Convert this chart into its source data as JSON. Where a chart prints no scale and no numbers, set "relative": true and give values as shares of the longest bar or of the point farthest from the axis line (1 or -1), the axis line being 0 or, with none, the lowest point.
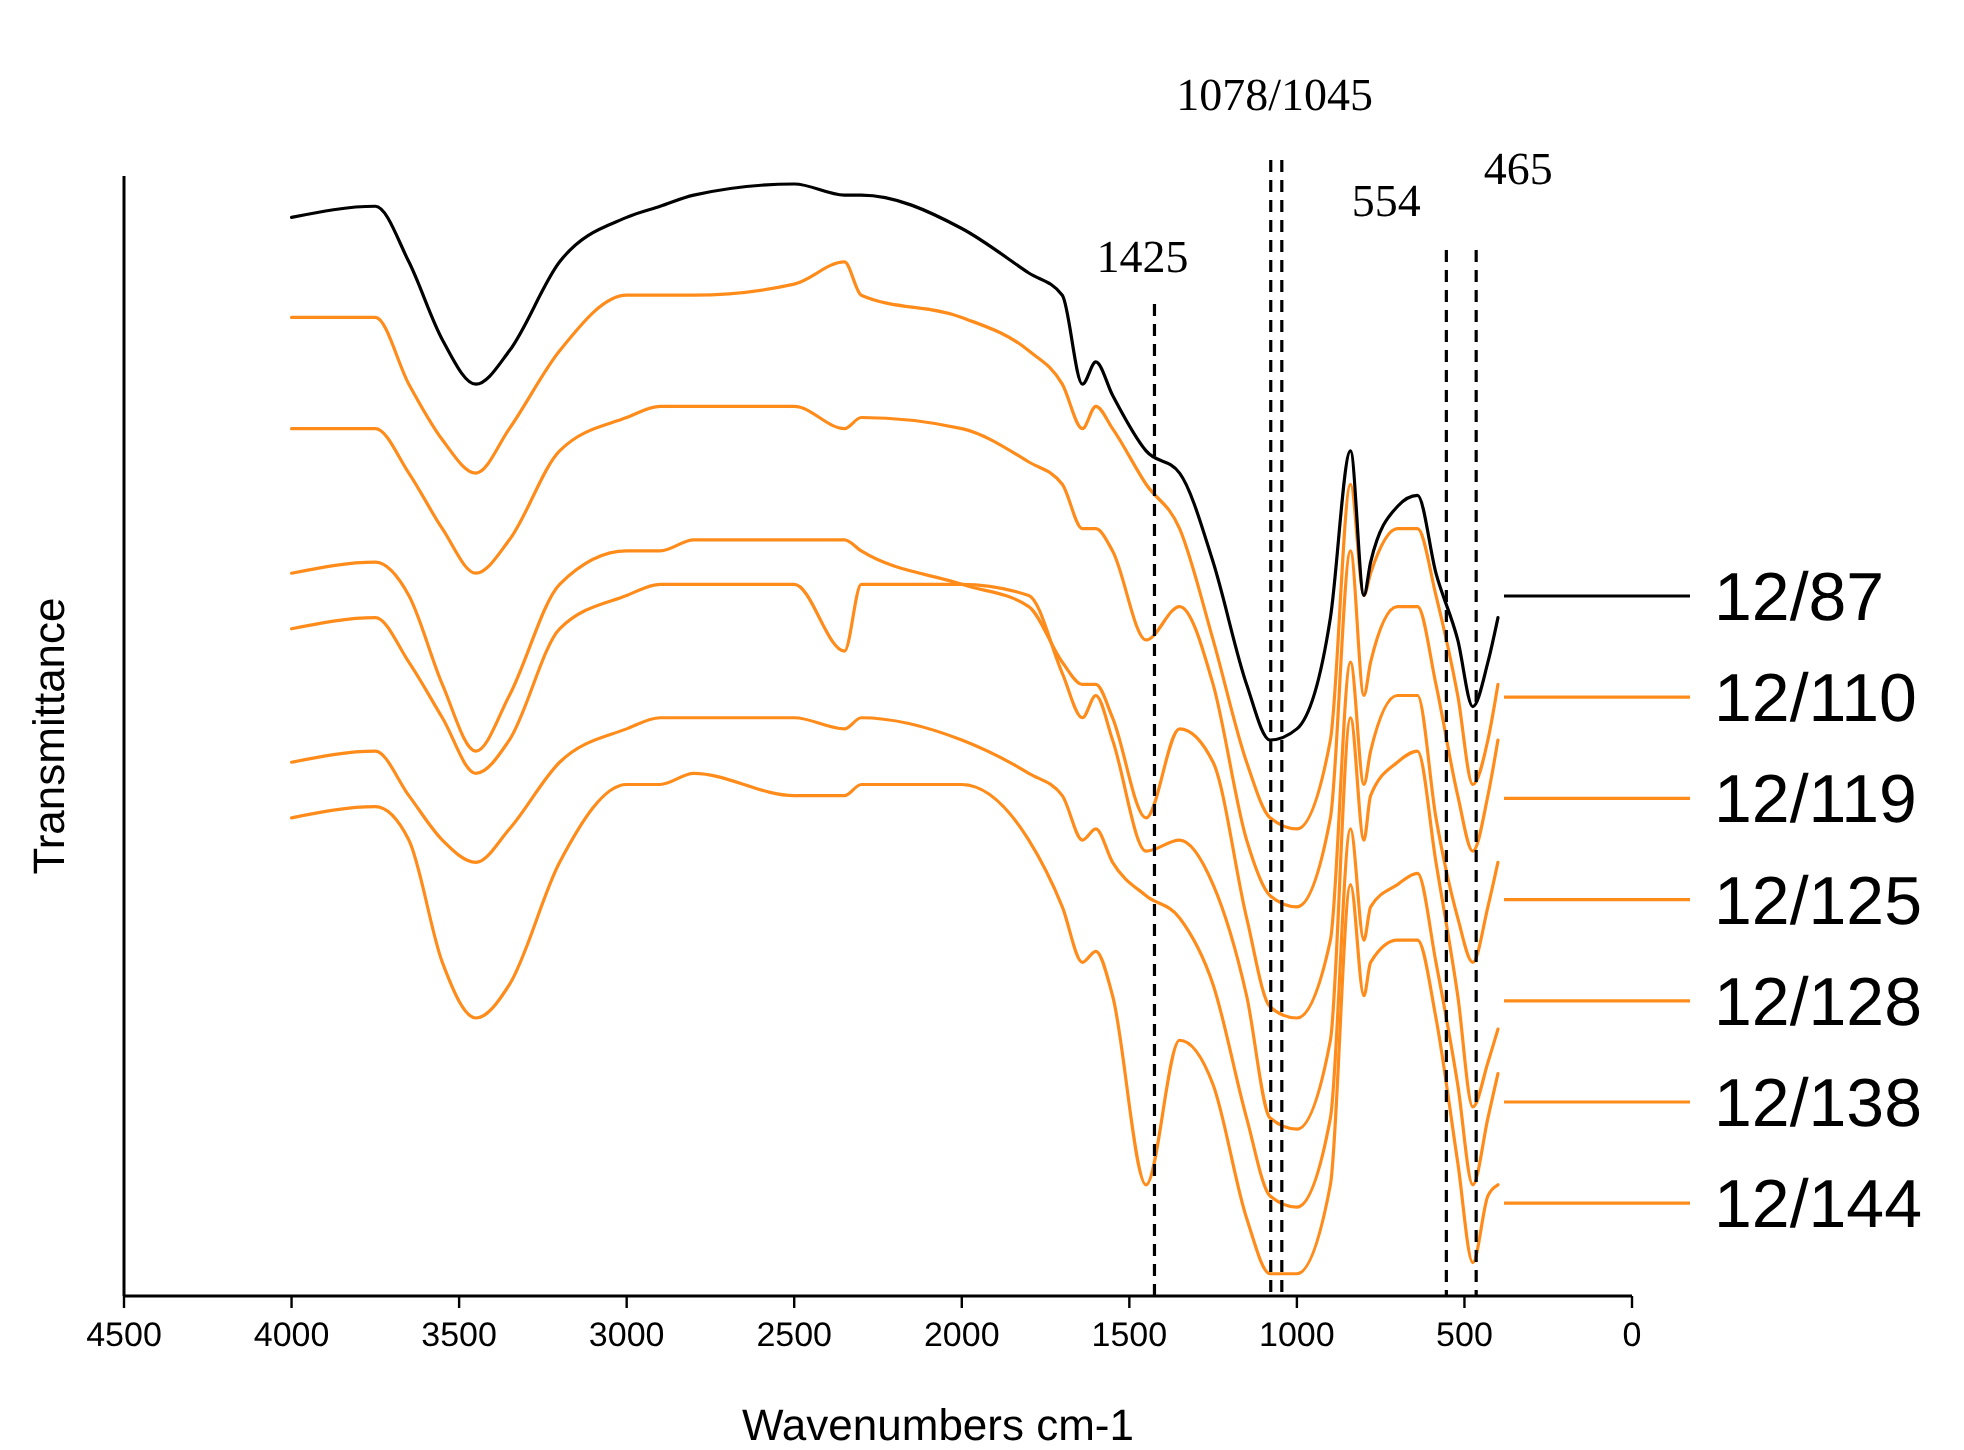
{
  "chart_data": {
    "type": "line",
    "relative": true,
    "xlabel": "Wavenumbers cm-1",
    "ylabel": "Transmittance",
    "xlim": [
      4500,
      0
    ],
    "xticks": [
      4500,
      4000,
      3500,
      3000,
      2500,
      2000,
      1500,
      1000,
      500,
      0
    ],
    "legend": "right",
    "grid": false,
    "x": [
      4000,
      3750,
      3650,
      3550,
      3450,
      3350,
      3200,
      3000,
      2900,
      2800,
      2500,
      2350,
      2300,
      2000,
      1800,
      1700,
      1640,
      1600,
      1550,
      1450,
      1350,
      1250,
      1150,
      1080,
      1000,
      900,
      840,
      800,
      780,
      700,
      640,
      585,
      520,
      475,
      430,
      400
    ],
    "series": [
      {
        "name": "12/87",
        "color": "#000000",
        "values": [
          0.97,
          0.98,
          0.93,
          0.86,
          0.82,
          0.85,
          0.93,
          0.97,
          0.98,
          0.99,
          1.0,
          0.99,
          0.99,
          0.96,
          0.92,
          0.9,
          0.82,
          0.84,
          0.81,
          0.76,
          0.74,
          0.66,
          0.55,
          0.5,
          0.51,
          0.61,
          0.76,
          0.63,
          0.66,
          0.71,
          0.72,
          0.65,
          0.59,
          0.53,
          0.57,
          0.61
        ]
      },
      {
        "name": "12/110",
        "color": "#ff8c1a",
        "values": [
          0.88,
          0.88,
          0.82,
          0.77,
          0.74,
          0.78,
          0.85,
          0.9,
          0.9,
          0.9,
          0.91,
          0.93,
          0.9,
          0.88,
          0.85,
          0.82,
          0.78,
          0.8,
          0.78,
          0.73,
          0.69,
          0.59,
          0.48,
          0.43,
          0.42,
          0.5,
          0.73,
          0.63,
          0.65,
          0.69,
          0.69,
          0.63,
          0.54,
          0.46,
          0.5,
          0.55
        ]
      },
      {
        "name": "12/119",
        "color": "#ff8c1a",
        "values": [
          0.78,
          0.78,
          0.74,
          0.69,
          0.65,
          0.68,
          0.76,
          0.79,
          0.8,
          0.8,
          0.8,
          0.78,
          0.79,
          0.78,
          0.75,
          0.73,
          0.69,
          0.69,
          0.67,
          0.59,
          0.62,
          0.55,
          0.41,
          0.36,
          0.35,
          0.43,
          0.67,
          0.54,
          0.57,
          0.62,
          0.62,
          0.55,
          0.45,
          0.4,
          0.45,
          0.5
        ]
      },
      {
        "name": "12/125",
        "color": "#ff8c1a",
        "values": [
          0.65,
          0.66,
          0.63,
          0.55,
          0.49,
          0.54,
          0.64,
          0.67,
          0.67,
          0.68,
          0.68,
          0.68,
          0.67,
          0.64,
          0.62,
          0.57,
          0.55,
          0.55,
          0.52,
          0.43,
          0.51,
          0.48,
          0.34,
          0.26,
          0.25,
          0.32,
          0.57,
          0.46,
          0.49,
          0.54,
          0.54,
          0.43,
          0.34,
          0.3,
          0.35,
          0.39
        ]
      },
      {
        "name": "12/128",
        "color": "#ff8c1a",
        "values": [
          0.6,
          0.61,
          0.57,
          0.52,
          0.47,
          0.5,
          0.6,
          0.63,
          0.64,
          0.64,
          0.64,
          0.58,
          0.64,
          0.64,
          0.63,
          0.56,
          0.52,
          0.54,
          0.5,
          0.4,
          0.41,
          0.37,
          0.27,
          0.16,
          0.15,
          0.23,
          0.52,
          0.41,
          0.45,
          0.48,
          0.49,
          0.39,
          0.27,
          0.17,
          0.21,
          0.24
        ]
      },
      {
        "name": "12/138",
        "color": "#ff8c1a",
        "values": [
          0.48,
          0.49,
          0.45,
          0.41,
          0.39,
          0.42,
          0.48,
          0.51,
          0.52,
          0.52,
          0.52,
          0.51,
          0.52,
          0.5,
          0.47,
          0.45,
          0.41,
          0.42,
          0.39,
          0.36,
          0.34,
          0.28,
          0.16,
          0.09,
          0.08,
          0.16,
          0.42,
          0.32,
          0.35,
          0.37,
          0.38,
          0.3,
          0.19,
          0.1,
          0.16,
          0.2
        ]
      },
      {
        "name": "12/144",
        "color": "#ff8c1a",
        "values": [
          0.43,
          0.44,
          0.41,
          0.3,
          0.25,
          0.28,
          0.39,
          0.46,
          0.46,
          0.47,
          0.45,
          0.45,
          0.46,
          0.46,
          0.41,
          0.35,
          0.3,
          0.31,
          0.27,
          0.1,
          0.23,
          0.19,
          0.07,
          0.02,
          0.02,
          0.1,
          0.37,
          0.27,
          0.3,
          0.32,
          0.32,
          0.25,
          0.12,
          0.03,
          0.09,
          0.1
        ]
      }
    ],
    "ref_lines": [
      {
        "axis": "x",
        "value": 1425,
        "label": "1425",
        "line_style": "dashed",
        "color": "#000000"
      },
      {
        "axis": "x",
        "value": 1078,
        "label": "1078/1045",
        "line_style": "dashed",
        "color": "#000000"
      },
      {
        "axis": "x",
        "value": 1045,
        "label": null,
        "line_style": "dashed",
        "color": "#000000"
      },
      {
        "axis": "x",
        "value": 554,
        "label": "554",
        "line_style": "dashed",
        "color": "#000000"
      },
      {
        "axis": "x",
        "value": 465,
        "label": "465",
        "line_style": "dashed",
        "color": "#000000"
      }
    ]
  }
}
